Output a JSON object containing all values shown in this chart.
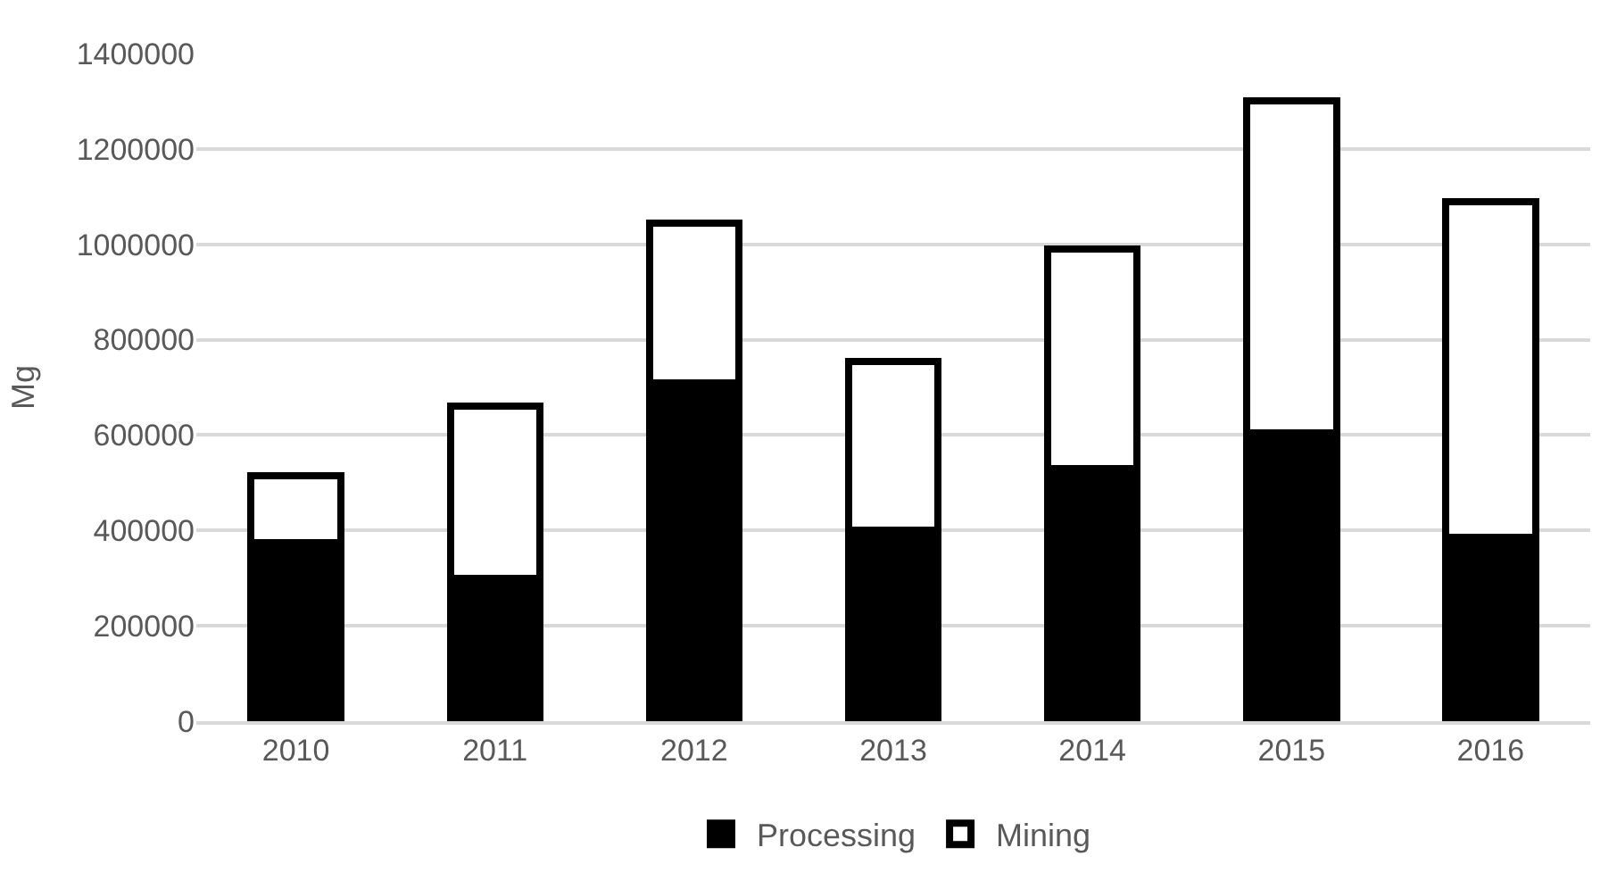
{
  "chart_data": {
    "type": "bar",
    "stacked": true,
    "ylabel": "Mg",
    "categories": [
      "2010",
      "2011",
      "2012",
      "2013",
      "2014",
      "2015",
      "2016"
    ],
    "series": [
      {
        "name": "Processing",
        "color": "#000000",
        "values": [
          375000,
          300000,
          710000,
          400000,
          530000,
          605000,
          385000
        ]
      },
      {
        "name": "Mining",
        "color": "#ffffff",
        "values": [
          140000,
          360000,
          335000,
          355000,
          460000,
          695000,
          705000
        ]
      }
    ],
    "ylim": [
      0,
      1400000
    ],
    "yticks": [
      0,
      200000,
      400000,
      600000,
      800000,
      1000000,
      1200000,
      1400000
    ],
    "grid": "y",
    "legend": "bottom"
  }
}
